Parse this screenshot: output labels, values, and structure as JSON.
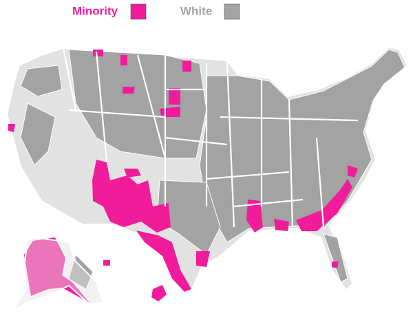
{
  "legend": [
    {
      "label": "Minority",
      "color": "#f01c9a"
    },
    {
      "label": "White",
      "color": "#a3a3a3"
    }
  ]
}
